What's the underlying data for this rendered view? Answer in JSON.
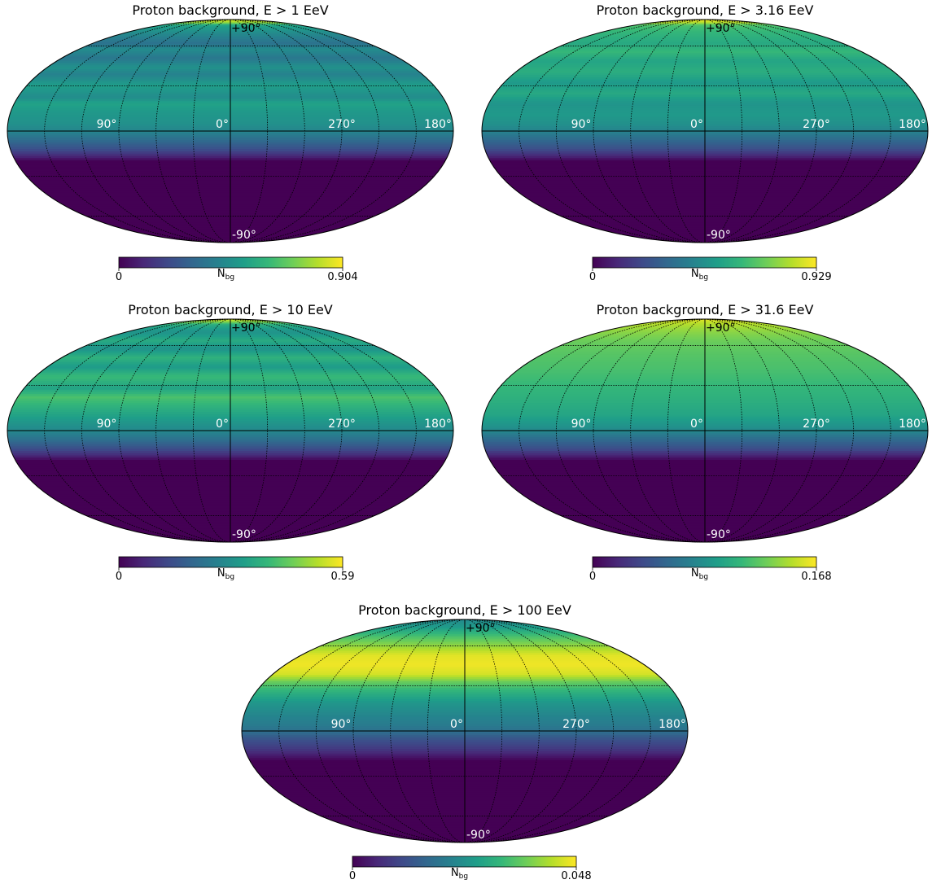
{
  "colormap": "viridis",
  "colors": {
    "grid": "#000000",
    "label": "#ffffff",
    "text": "#000000",
    "viridis_stops": [
      "#440154",
      "#482878",
      "#3e4a89",
      "#31688e",
      "#26828e",
      "#1f9e89",
      "#35b779",
      "#6ece58",
      "#b5de2b",
      "#fde725"
    ]
  },
  "chart_data": [
    {
      "type": "heatmap",
      "projection": "mollweide",
      "title": "Proton background, E > 1 EeV",
      "colorbar": {
        "label_main": "N",
        "label_sub": "bg",
        "min": 0,
        "max": 0.904,
        "min_label": "0",
        "max_label": "0.904"
      },
      "lon_labels": [
        "90°",
        "0°",
        "270°",
        "180°"
      ],
      "lat_labels": [
        "+90°",
        "-90°"
      ],
      "dec_profile": {
        "dec_deg": [
          90,
          84,
          80,
          70,
          62,
          57,
          50,
          43,
          38,
          30,
          22,
          18,
          12,
          6,
          0,
          -6,
          -12,
          -16,
          -20,
          -90
        ],
        "value": [
          0.86,
          0.78,
          0.52,
          0.42,
          0.34,
          0.44,
          0.36,
          0.46,
          0.4,
          0.5,
          0.44,
          0.52,
          0.48,
          0.46,
          0.42,
          0.32,
          0.22,
          0.12,
          0.0,
          0.0
        ]
      }
    },
    {
      "type": "heatmap",
      "projection": "mollweide",
      "title": "Proton background, E > 3.16 EeV",
      "colorbar": {
        "label_main": "N",
        "label_sub": "bg",
        "min": 0,
        "max": 0.929,
        "min_label": "0",
        "max_label": "0.929"
      },
      "lon_labels": [
        "90°",
        "0°",
        "270°",
        "180°"
      ],
      "lat_labels": [
        "+90°",
        "-90°"
      ],
      "dec_profile": {
        "dec_deg": [
          90,
          84,
          80,
          70,
          62,
          55,
          48,
          40,
          32,
          25,
          18,
          10,
          4,
          0,
          -6,
          -12,
          -16,
          -20,
          -90
        ],
        "value": [
          0.92,
          0.84,
          0.66,
          0.6,
          0.56,
          0.62,
          0.54,
          0.58,
          0.5,
          0.56,
          0.48,
          0.5,
          0.46,
          0.42,
          0.32,
          0.22,
          0.12,
          0.0,
          0.0
        ]
      }
    },
    {
      "type": "heatmap",
      "projection": "mollweide",
      "title": "Proton background, E > 10 EeV",
      "colorbar": {
        "label_main": "N",
        "label_sub": "bg",
        "min": 0,
        "max": 0.59,
        "min_label": "0",
        "max_label": "0.59"
      },
      "lon_labels": [
        "90°",
        "0°",
        "270°",
        "180°"
      ],
      "lat_labels": [
        "+90°",
        "-90°"
      ],
      "dec_profile": {
        "dec_deg": [
          90,
          85,
          80,
          72,
          64,
          57,
          50,
          43,
          36,
          28,
          22,
          16,
          10,
          4,
          0,
          -6,
          -12,
          -16,
          -20,
          -90
        ],
        "value": [
          0.58,
          0.5,
          0.36,
          0.3,
          0.36,
          0.3,
          0.38,
          0.32,
          0.4,
          0.34,
          0.42,
          0.38,
          0.34,
          0.3,
          0.28,
          0.22,
          0.14,
          0.08,
          0.0,
          0.0
        ]
      }
    },
    {
      "type": "heatmap",
      "projection": "mollweide",
      "title": "Proton background, E > 31.6 EeV",
      "colorbar": {
        "label_main": "N",
        "label_sub": "bg",
        "min": 0,
        "max": 0.168,
        "min_label": "0",
        "max_label": "0.168"
      },
      "lon_labels": [
        "90°",
        "0°",
        "270°",
        "180°"
      ],
      "lat_labels": [
        "+90°",
        "-90°"
      ],
      "dec_profile": {
        "dec_deg": [
          90,
          82,
          72,
          62,
          50,
          40,
          30,
          20,
          10,
          4,
          0,
          -6,
          -12,
          -16,
          -20,
          -90
        ],
        "value": [
          0.165,
          0.15,
          0.138,
          0.128,
          0.122,
          0.118,
          0.112,
          0.106,
          0.098,
          0.088,
          0.08,
          0.058,
          0.04,
          0.02,
          0.0,
          0.0
        ]
      }
    },
    {
      "type": "heatmap",
      "projection": "mollweide",
      "title": "Proton background, E > 100 EeV",
      "colorbar": {
        "label_main": "N",
        "label_sub": "bg",
        "min": 0,
        "max": 0.048,
        "min_label": "0",
        "max_label": "0.048"
      },
      "lon_labels": [
        "90°",
        "0°",
        "270°",
        "180°"
      ],
      "lat_labels": [
        "+90°",
        "-90°"
      ],
      "dec_profile": {
        "dec_deg": [
          90,
          78,
          68,
          60,
          52,
          45,
          38,
          32,
          25,
          18,
          10,
          4,
          0,
          -6,
          -12,
          -16,
          -20,
          -90
        ],
        "value": [
          0.022,
          0.026,
          0.034,
          0.04,
          0.046,
          0.047,
          0.045,
          0.036,
          0.03,
          0.025,
          0.022,
          0.02,
          0.018,
          0.012,
          0.008,
          0.004,
          0.0,
          0.0
        ]
      }
    }
  ]
}
